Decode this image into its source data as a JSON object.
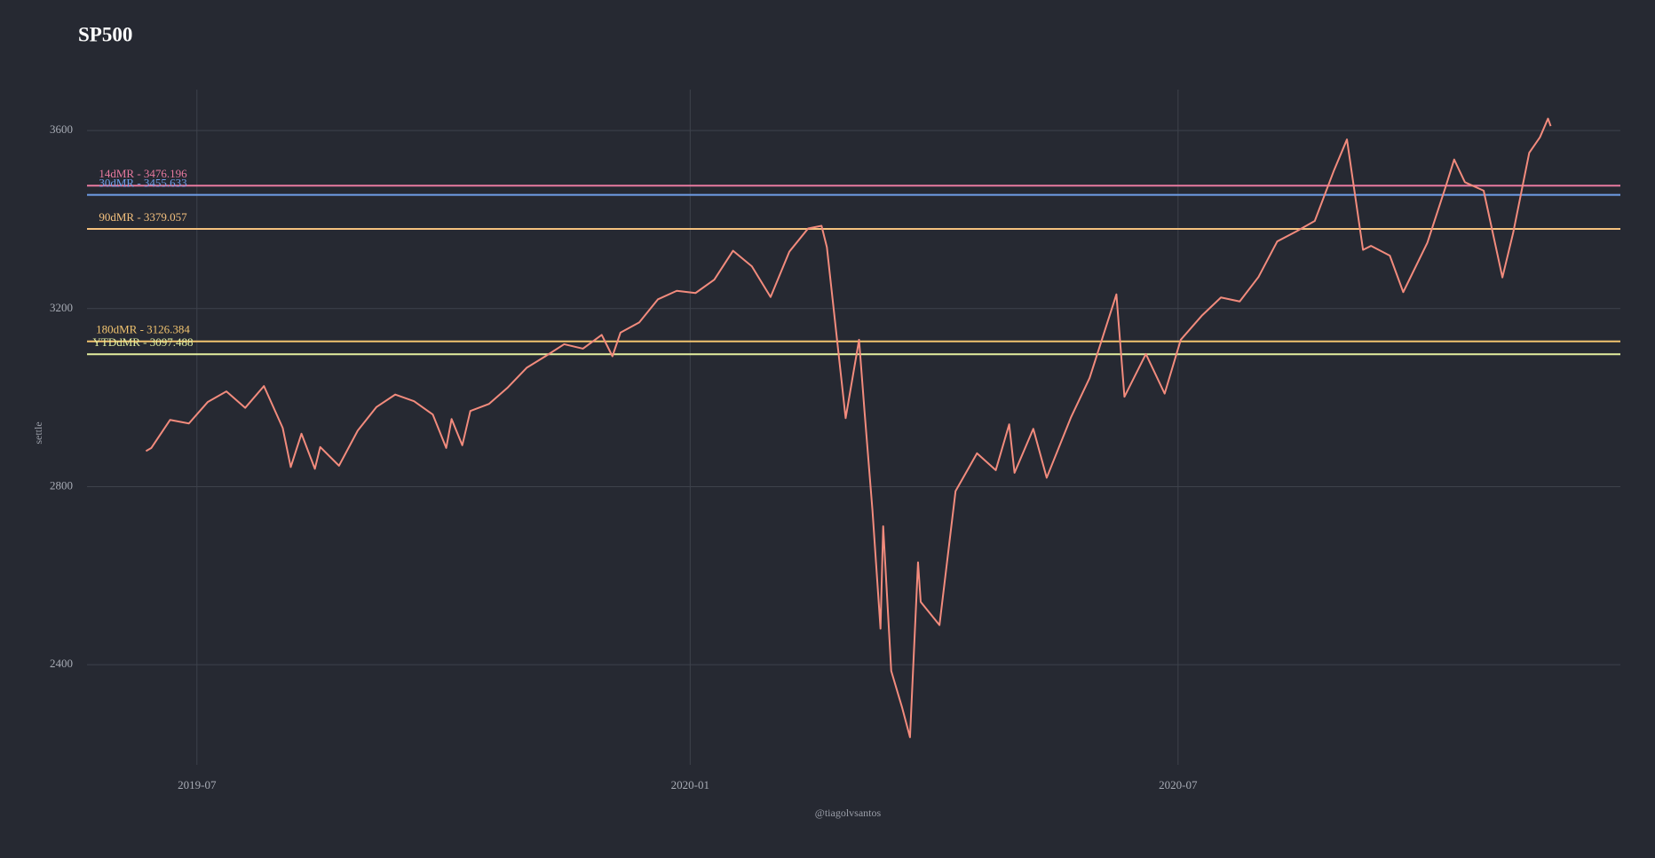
{
  "chart_data": {
    "type": "line",
    "title": "SP500",
    "x_label": "@tiagolvsantos",
    "y_label": "settle",
    "grid": true,
    "xlim": [
      "2019-05-21",
      "2020-12-13"
    ],
    "xticks": [
      "2019-07",
      "2020-01",
      "2020-07"
    ],
    "ylim": [
      2175,
      3692
    ],
    "yticks": [
      2400,
      2800,
      3200,
      3600
    ],
    "x": [
      "2019-06-12",
      "2019-06-14",
      "2019-06-21",
      "2019-06-28",
      "2019-07-05",
      "2019-07-12",
      "2019-07-19",
      "2019-07-26",
      "2019-08-02",
      "2019-08-05",
      "2019-08-09",
      "2019-08-14",
      "2019-08-16",
      "2019-08-23",
      "2019-08-30",
      "2019-09-06",
      "2019-09-13",
      "2019-09-20",
      "2019-09-27",
      "2019-10-02",
      "2019-10-04",
      "2019-10-08",
      "2019-10-11",
      "2019-10-18",
      "2019-10-25",
      "2019-11-01",
      "2019-11-08",
      "2019-11-15",
      "2019-11-22",
      "2019-11-29",
      "2019-12-03",
      "2019-12-06",
      "2019-12-13",
      "2019-12-20",
      "2019-12-27",
      "2020-01-03",
      "2020-01-10",
      "2020-01-17",
      "2020-01-24",
      "2020-01-31",
      "2020-02-07",
      "2020-02-14",
      "2020-02-19",
      "2020-02-21",
      "2020-02-28",
      "2020-03-04",
      "2020-03-06",
      "2020-03-09",
      "2020-03-12",
      "2020-03-13",
      "2020-03-16",
      "2020-03-20",
      "2020-03-23",
      "2020-03-26",
      "2020-03-27",
      "2020-04-03",
      "2020-04-09",
      "2020-04-17",
      "2020-04-24",
      "2020-04-29",
      "2020-05-01",
      "2020-05-08",
      "2020-05-13",
      "2020-05-22",
      "2020-05-29",
      "2020-06-08",
      "2020-06-11",
      "2020-06-19",
      "2020-06-26",
      "2020-07-02",
      "2020-07-10",
      "2020-07-17",
      "2020-07-24",
      "2020-07-31",
      "2020-08-07",
      "2020-08-14",
      "2020-08-21",
      "2020-08-28",
      "2020-09-02",
      "2020-09-08",
      "2020-09-11",
      "2020-09-18",
      "2020-09-23",
      "2020-10-02",
      "2020-10-09",
      "2020-10-12",
      "2020-10-16",
      "2020-10-23",
      "2020-10-30",
      "2020-11-03",
      "2020-11-09",
      "2020-11-13",
      "2020-11-16",
      "2020-11-17"
    ],
    "series": [
      {
        "name": "settle",
        "color": "#f28b7d",
        "values": [
          2880,
          2887,
          2950,
          2942,
          2990,
          3014,
          2977,
          3026,
          2932,
          2844,
          2919,
          2840,
          2889,
          2847,
          2926,
          2979,
          3007,
          2992,
          2962,
          2887,
          2952,
          2893,
          2970,
          2986,
          3023,
          3067,
          3093,
          3120,
          3110,
          3141,
          3093,
          3146,
          3169,
          3221,
          3240,
          3235,
          3265,
          3330,
          3295,
          3226,
          3328,
          3380,
          3386,
          3338,
          2954,
          3130,
          2972,
          2747,
          2481,
          2711,
          2386,
          2305,
          2237,
          2630,
          2541,
          2489,
          2790,
          2875,
          2837,
          2940,
          2831,
          2930,
          2820,
          2955,
          3044,
          3232,
          3002,
          3098,
          3009,
          3130,
          3185,
          3225,
          3216,
          3271,
          3351,
          3373,
          3397,
          3508,
          3580,
          3332,
          3341,
          3319,
          3237,
          3348,
          3477,
          3535,
          3484,
          3465,
          3270,
          3370,
          3550,
          3585,
          3627,
          3610
        ]
      }
    ],
    "hlines": [
      {
        "label": "14dMR - 3476.196",
        "value": 3476.196,
        "color": "#e87aa0"
      },
      {
        "label": "30dMR - 3455.633",
        "value": 3455.633,
        "color": "#6f9ee8"
      },
      {
        "label": "90dMR - 3379.057",
        "value": 3379.057,
        "color": "#f4c17e"
      },
      {
        "label": "180dMR - 3126.384",
        "value": 3126.384,
        "color": "#f2c46f"
      },
      {
        "label": "YTDdMR - 3097.488",
        "value": 3097.488,
        "color": "#e3ee9e"
      }
    ]
  }
}
